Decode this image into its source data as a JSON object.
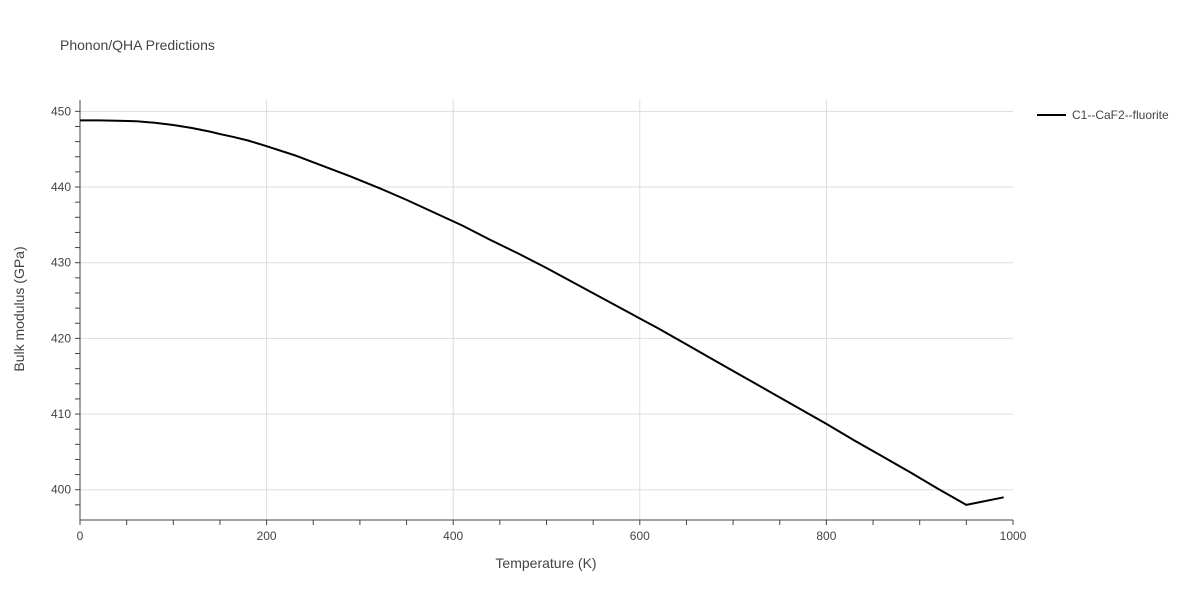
{
  "chart_data": {
    "type": "line",
    "title": "Phonon/QHA Predictions",
    "xlabel": "Temperature (K)",
    "ylabel": "Bulk modulus (GPa)",
    "xlim": [
      0,
      1000
    ],
    "ylim": [
      396,
      451.5
    ],
    "x_ticks": [
      0,
      200,
      400,
      600,
      800,
      1000
    ],
    "y_ticks": [
      400,
      410,
      420,
      430,
      440,
      450
    ],
    "grid": true,
    "legend_position": "top-right",
    "series": [
      {
        "name": "C1--CaF2--fluorite",
        "color": "#000000",
        "x": [
          0,
          20,
          40,
          60,
          70,
          80,
          90,
          100,
          110,
          120,
          130,
          140,
          150,
          165,
          180,
          200,
          230,
          260,
          290,
          320,
          350,
          380,
          410,
          440,
          470,
          500,
          530,
          560,
          590,
          620,
          650,
          680,
          710,
          740,
          770,
          800,
          830,
          860,
          890,
          920,
          950,
          990
        ],
        "y": [
          448.8,
          448.8,
          448.75,
          448.7,
          448.6,
          448.5,
          448.35,
          448.2,
          448.0,
          447.8,
          447.55,
          447.3,
          447.0,
          446.6,
          446.15,
          445.4,
          444.2,
          442.8,
          441.4,
          439.9,
          438.3,
          436.6,
          434.9,
          433.0,
          431.2,
          429.3,
          427.3,
          425.3,
          423.3,
          421.3,
          419.2,
          417.1,
          415.0,
          412.9,
          410.8,
          408.7,
          406.5,
          404.4,
          402.3,
          400.1,
          398.0,
          399.0
        ]
      }
    ]
  }
}
